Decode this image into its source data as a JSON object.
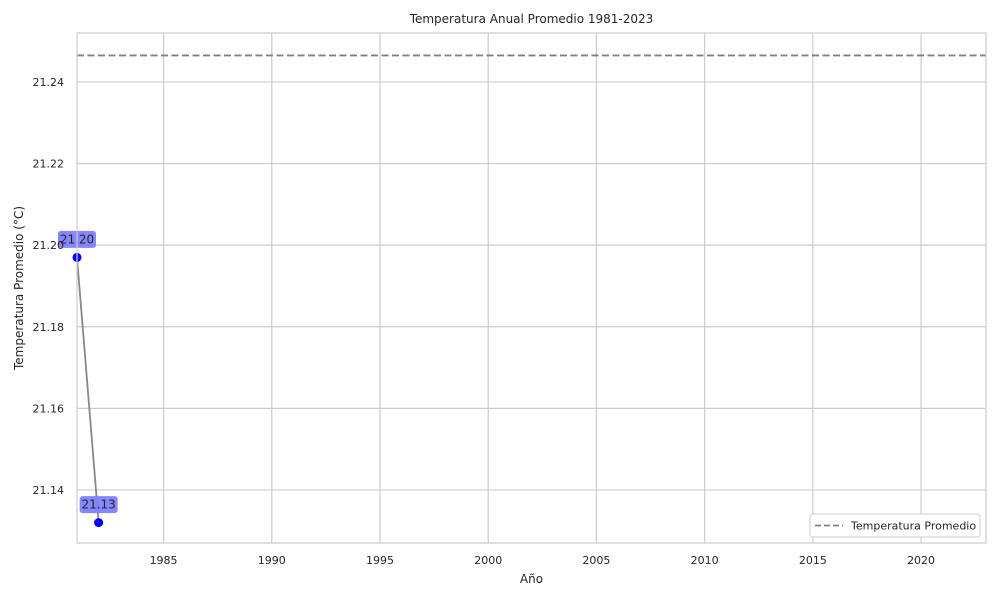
{
  "chart_data": {
    "type": "line",
    "title": "Temperatura Anual Promedio 1981-2023",
    "xlabel": "Año",
    "ylabel": "Temperatura Promedio (°C)",
    "xlim": [
      1981,
      2023
    ],
    "ylim": [
      21.127,
      21.252
    ],
    "xticks": [
      1985,
      1990,
      1995,
      2000,
      2005,
      2010,
      2015,
      2020
    ],
    "xtick_labels": [
      "1985",
      "1990",
      "1995",
      "2000",
      "2005",
      "2010",
      "2015",
      "2020"
    ],
    "yticks": [
      21.14,
      21.16,
      21.18,
      21.2,
      21.22,
      21.24
    ],
    "ytick_labels": [
      "21.14",
      "21.16",
      "21.18",
      "21.20",
      "21.22",
      "21.24"
    ],
    "grid": true,
    "series": [
      {
        "x": [
          1981,
          1982
        ],
        "y": [
          21.197,
          21.132
        ],
        "line_color": "#888888",
        "marker_color": "#0000ff",
        "labels": [
          "21.20",
          "21.13"
        ]
      }
    ],
    "reference_line": {
      "name": "Temperatura Promedio",
      "y": 21.2465,
      "color": "#808080",
      "style": "dashed"
    },
    "legend": {
      "position": "bottom-right",
      "entries": [
        "Temperatura Promedio"
      ]
    },
    "colors": {
      "grid": "#cccccc",
      "spine": "#cccccc",
      "label_box": "#8080ff"
    }
  }
}
